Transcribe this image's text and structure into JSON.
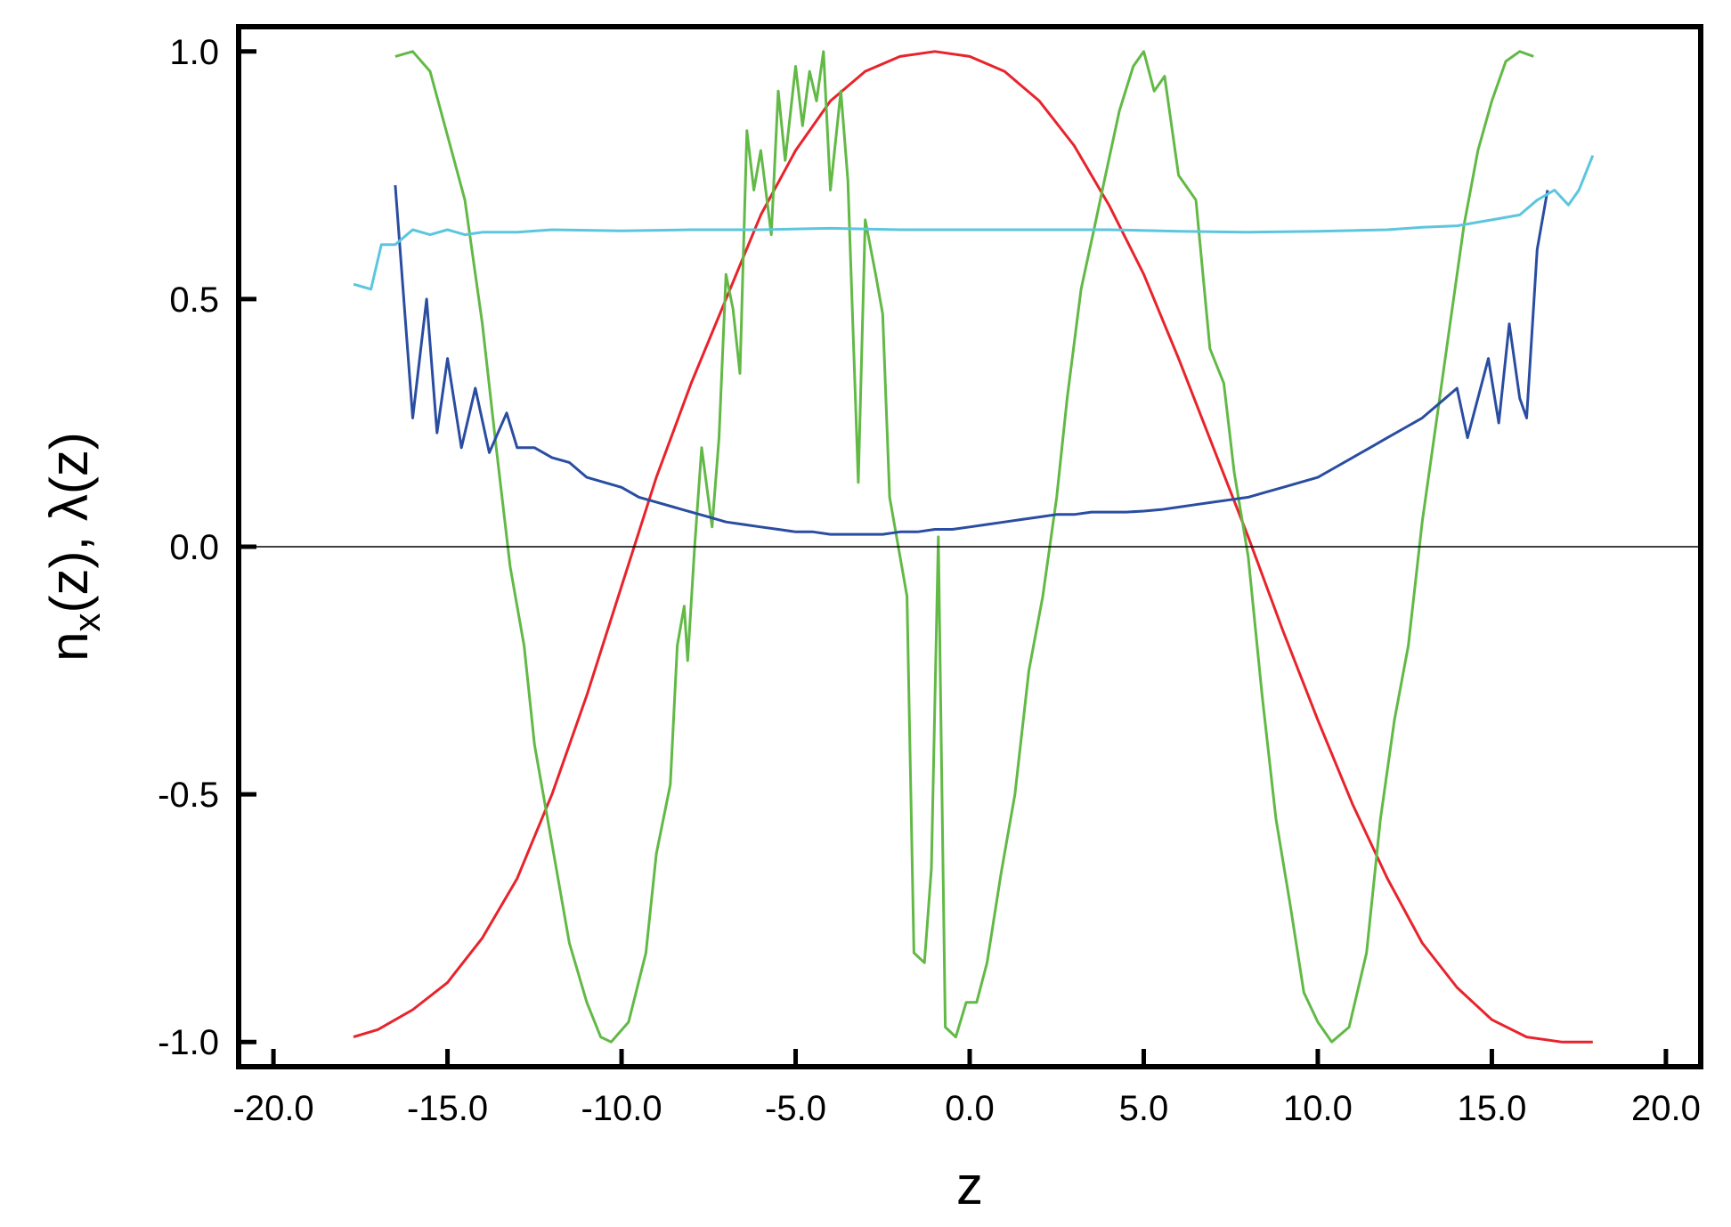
{
  "chart_data": {
    "type": "line",
    "title": "",
    "xlabel": "z",
    "ylabel": "n_x(z), λ(z)",
    "ylabel_parts": {
      "n": "n",
      "sub": "x",
      "rest": "(z), λ(z)"
    },
    "xlim": [
      -21.0,
      21.0
    ],
    "ylim": [
      -1.05,
      1.05
    ],
    "x_ticks": [
      -20,
      -15,
      -10,
      -5,
      0,
      5,
      10,
      15,
      20
    ],
    "x_tick_labels": [
      "-20.0",
      "-15.0",
      "-10.0",
      "-5.0",
      "0.0",
      "5.0",
      "10.0",
      "15.0",
      "20.0"
    ],
    "y_ticks": [
      -1.0,
      -0.5,
      0.0,
      0.5,
      1.0
    ],
    "y_tick_labels": [
      "-1.0",
      "-0.5",
      "0.0",
      "0.5",
      "1.0"
    ],
    "zero_line": 0.0,
    "grid": false,
    "legend": "none",
    "series": [
      {
        "color": "#e8232b",
        "points": [
          [
            -17.7,
            -0.99
          ],
          [
            -17.0,
            -0.975
          ],
          [
            -16.0,
            -0.935
          ],
          [
            -15.0,
            -0.88
          ],
          [
            -14.0,
            -0.79
          ],
          [
            -13.0,
            -0.67
          ],
          [
            -12.0,
            -0.5
          ],
          [
            -11.0,
            -0.3
          ],
          [
            -10.0,
            -0.08
          ],
          [
            -9.0,
            0.14
          ],
          [
            -8.0,
            0.33
          ],
          [
            -7.0,
            0.5
          ],
          [
            -6.0,
            0.67
          ],
          [
            -5.0,
            0.8
          ],
          [
            -4.0,
            0.9
          ],
          [
            -3.0,
            0.96
          ],
          [
            -2.0,
            0.99
          ],
          [
            -1.0,
            1.0
          ],
          [
            0.0,
            0.99
          ],
          [
            1.0,
            0.96
          ],
          [
            2.0,
            0.9
          ],
          [
            3.0,
            0.81
          ],
          [
            4.0,
            0.69
          ],
          [
            5.0,
            0.55
          ],
          [
            6.0,
            0.38
          ],
          [
            7.0,
            0.2
          ],
          [
            8.0,
            0.02
          ],
          [
            9.0,
            -0.17
          ],
          [
            10.0,
            -0.35
          ],
          [
            11.0,
            -0.52
          ],
          [
            12.0,
            -0.67
          ],
          [
            13.0,
            -0.8
          ],
          [
            14.0,
            -0.89
          ],
          [
            15.0,
            -0.955
          ],
          [
            16.0,
            -0.99
          ],
          [
            17.0,
            -1.0
          ],
          [
            17.9,
            -1.0
          ]
        ]
      },
      {
        "color": "#62b946",
        "points": [
          [
            -16.5,
            0.99
          ],
          [
            -16.0,
            1.0
          ],
          [
            -15.5,
            0.96
          ],
          [
            -15.0,
            0.83
          ],
          [
            -14.5,
            0.7
          ],
          [
            -14.0,
            0.45
          ],
          [
            -13.6,
            0.2
          ],
          [
            -13.2,
            -0.04
          ],
          [
            -12.8,
            -0.2
          ],
          [
            -12.5,
            -0.4
          ],
          [
            -12.0,
            -0.6
          ],
          [
            -11.5,
            -0.8
          ],
          [
            -11.0,
            -0.92
          ],
          [
            -10.6,
            -0.99
          ],
          [
            -10.3,
            -1.0
          ],
          [
            -9.8,
            -0.96
          ],
          [
            -9.3,
            -0.82
          ],
          [
            -9.0,
            -0.62
          ],
          [
            -8.6,
            -0.48
          ],
          [
            -8.4,
            -0.2
          ],
          [
            -8.2,
            -0.12
          ],
          [
            -8.1,
            -0.23
          ],
          [
            -7.9,
            0.0
          ],
          [
            -7.7,
            0.2
          ],
          [
            -7.4,
            0.04
          ],
          [
            -7.2,
            0.22
          ],
          [
            -7.0,
            0.55
          ],
          [
            -6.8,
            0.48
          ],
          [
            -6.6,
            0.35
          ],
          [
            -6.4,
            0.84
          ],
          [
            -6.2,
            0.72
          ],
          [
            -6.0,
            0.8
          ],
          [
            -5.7,
            0.63
          ],
          [
            -5.5,
            0.92
          ],
          [
            -5.3,
            0.78
          ],
          [
            -5.0,
            0.97
          ],
          [
            -4.8,
            0.85
          ],
          [
            -4.6,
            0.96
          ],
          [
            -4.4,
            0.9
          ],
          [
            -4.2,
            1.0
          ],
          [
            -4.0,
            0.72
          ],
          [
            -3.7,
            0.92
          ],
          [
            -3.5,
            0.74
          ],
          [
            -3.2,
            0.13
          ],
          [
            -3.0,
            0.66
          ],
          [
            -2.7,
            0.55
          ],
          [
            -2.5,
            0.47
          ],
          [
            -2.3,
            0.1
          ],
          [
            -1.8,
            -0.1
          ],
          [
            -1.6,
            -0.82
          ],
          [
            -1.3,
            -0.84
          ],
          [
            -1.1,
            -0.65
          ],
          [
            -0.9,
            0.02
          ],
          [
            -0.7,
            -0.97
          ],
          [
            -0.4,
            -0.99
          ],
          [
            -0.1,
            -0.92
          ],
          [
            0.2,
            -0.92
          ],
          [
            0.5,
            -0.84
          ],
          [
            0.9,
            -0.66
          ],
          [
            1.3,
            -0.5
          ],
          [
            1.7,
            -0.25
          ],
          [
            2.1,
            -0.1
          ],
          [
            2.5,
            0.1
          ],
          [
            2.8,
            0.3
          ],
          [
            3.2,
            0.52
          ],
          [
            3.6,
            0.65
          ],
          [
            3.9,
            0.75
          ],
          [
            4.3,
            0.88
          ],
          [
            4.7,
            0.97
          ],
          [
            5.0,
            1.0
          ],
          [
            5.3,
            0.92
          ],
          [
            5.6,
            0.95
          ],
          [
            6.0,
            0.75
          ],
          [
            6.5,
            0.7
          ],
          [
            6.9,
            0.4
          ],
          [
            7.3,
            0.33
          ],
          [
            7.6,
            0.15
          ],
          [
            8.0,
            -0.02
          ],
          [
            8.4,
            -0.3
          ],
          [
            8.8,
            -0.55
          ],
          [
            9.2,
            -0.72
          ],
          [
            9.6,
            -0.9
          ],
          [
            10.0,
            -0.96
          ],
          [
            10.4,
            -1.0
          ],
          [
            10.9,
            -0.97
          ],
          [
            11.4,
            -0.82
          ],
          [
            11.8,
            -0.55
          ],
          [
            12.2,
            -0.35
          ],
          [
            12.6,
            -0.2
          ],
          [
            13.0,
            0.05
          ],
          [
            13.4,
            0.25
          ],
          [
            13.8,
            0.45
          ],
          [
            14.2,
            0.65
          ],
          [
            14.6,
            0.8
          ],
          [
            15.0,
            0.9
          ],
          [
            15.4,
            0.98
          ],
          [
            15.8,
            1.0
          ],
          [
            16.2,
            0.99
          ]
        ]
      },
      {
        "color": "#2a4da1",
        "points": [
          [
            -16.5,
            0.73
          ],
          [
            -16.0,
            0.26
          ],
          [
            -15.6,
            0.5
          ],
          [
            -15.3,
            0.23
          ],
          [
            -15.0,
            0.38
          ],
          [
            -14.6,
            0.2
          ],
          [
            -14.2,
            0.32
          ],
          [
            -13.8,
            0.19
          ],
          [
            -13.3,
            0.27
          ],
          [
            -13.0,
            0.2
          ],
          [
            -12.5,
            0.2
          ],
          [
            -12.0,
            0.18
          ],
          [
            -11.5,
            0.17
          ],
          [
            -11.0,
            0.14
          ],
          [
            -10.5,
            0.13
          ],
          [
            -10.0,
            0.12
          ],
          [
            -9.5,
            0.1
          ],
          [
            -9.0,
            0.09
          ],
          [
            -8.5,
            0.08
          ],
          [
            -8.0,
            0.07
          ],
          [
            -7.5,
            0.06
          ],
          [
            -7.0,
            0.05
          ],
          [
            -6.5,
            0.045
          ],
          [
            -6.0,
            0.04
          ],
          [
            -5.5,
            0.035
          ],
          [
            -5.0,
            0.03
          ],
          [
            -4.5,
            0.03
          ],
          [
            -4.0,
            0.025
          ],
          [
            -3.5,
            0.025
          ],
          [
            -3.0,
            0.025
          ],
          [
            -2.5,
            0.025
          ],
          [
            -2.0,
            0.03
          ],
          [
            -1.5,
            0.03
          ],
          [
            -1.0,
            0.035
          ],
          [
            -0.5,
            0.035
          ],
          [
            0.0,
            0.04
          ],
          [
            0.5,
            0.045
          ],
          [
            1.0,
            0.05
          ],
          [
            1.5,
            0.055
          ],
          [
            2.0,
            0.06
          ],
          [
            2.5,
            0.065
          ],
          [
            3.0,
            0.065
          ],
          [
            3.5,
            0.07
          ],
          [
            4.0,
            0.07
          ],
          [
            4.5,
            0.07
          ],
          [
            5.0,
            0.072
          ],
          [
            5.5,
            0.075
          ],
          [
            6.0,
            0.08
          ],
          [
            6.5,
            0.085
          ],
          [
            7.0,
            0.09
          ],
          [
            7.5,
            0.095
          ],
          [
            8.0,
            0.1
          ],
          [
            8.5,
            0.11
          ],
          [
            9.0,
            0.12
          ],
          [
            9.5,
            0.13
          ],
          [
            10.0,
            0.14
          ],
          [
            10.5,
            0.16
          ],
          [
            11.0,
            0.18
          ],
          [
            11.5,
            0.2
          ],
          [
            12.0,
            0.22
          ],
          [
            12.5,
            0.24
          ],
          [
            13.0,
            0.26
          ],
          [
            13.5,
            0.29
          ],
          [
            14.0,
            0.32
          ],
          [
            14.3,
            0.22
          ],
          [
            14.6,
            0.3
          ],
          [
            14.9,
            0.38
          ],
          [
            15.2,
            0.25
          ],
          [
            15.5,
            0.45
          ],
          [
            15.8,
            0.3
          ],
          [
            16.0,
            0.26
          ],
          [
            16.3,
            0.6
          ],
          [
            16.6,
            0.72
          ]
        ]
      },
      {
        "color": "#5bc6dd",
        "points": [
          [
            -17.7,
            0.53
          ],
          [
            -17.2,
            0.52
          ],
          [
            -16.9,
            0.61
          ],
          [
            -16.5,
            0.61
          ],
          [
            -16.0,
            0.64
          ],
          [
            -15.5,
            0.63
          ],
          [
            -15.0,
            0.64
          ],
          [
            -14.5,
            0.63
          ],
          [
            -14.0,
            0.635
          ],
          [
            -13.0,
            0.635
          ],
          [
            -12.0,
            0.64
          ],
          [
            -10.0,
            0.638
          ],
          [
            -8.0,
            0.64
          ],
          [
            -6.0,
            0.64
          ],
          [
            -4.0,
            0.643
          ],
          [
            -2.0,
            0.64
          ],
          [
            0.0,
            0.64
          ],
          [
            2.0,
            0.64
          ],
          [
            4.0,
            0.64
          ],
          [
            6.0,
            0.637
          ],
          [
            8.0,
            0.635
          ],
          [
            10.0,
            0.637
          ],
          [
            12.0,
            0.64
          ],
          [
            13.0,
            0.645
          ],
          [
            14.0,
            0.648
          ],
          [
            15.0,
            0.66
          ],
          [
            15.8,
            0.67
          ],
          [
            16.3,
            0.7
          ],
          [
            16.8,
            0.72
          ],
          [
            17.2,
            0.69
          ],
          [
            17.5,
            0.72
          ],
          [
            17.9,
            0.79
          ]
        ]
      }
    ]
  }
}
